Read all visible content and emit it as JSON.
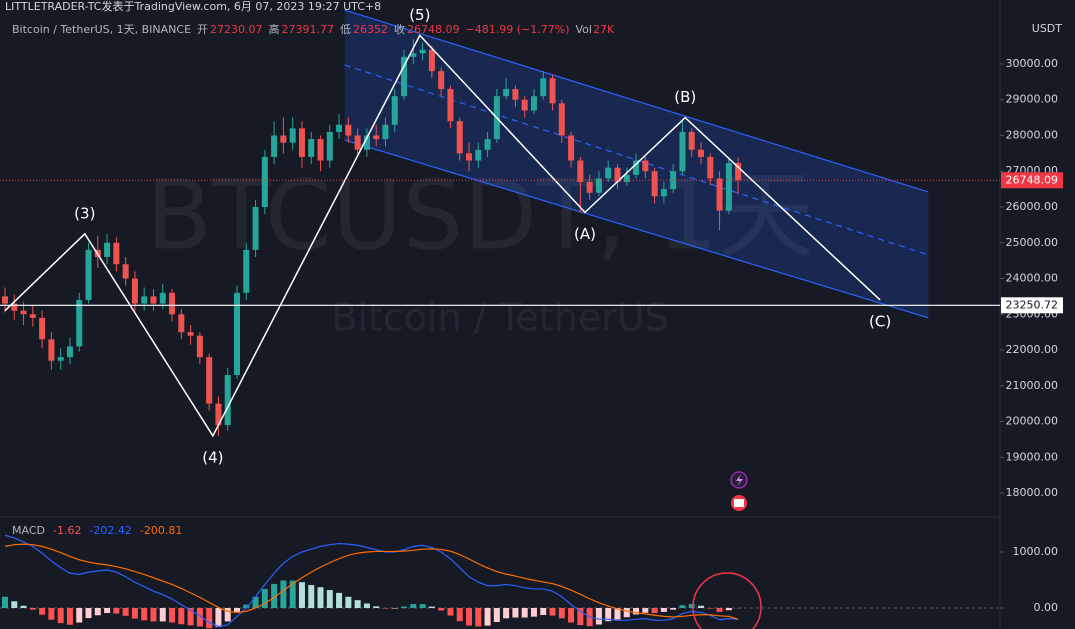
{
  "chart_data": [
    {
      "type": "candlestick",
      "credit": "LITTLETRADER-TC发表于TradingView.com,  6月 07, 2023 19:27 UTC+8",
      "title": "Bitcoin / TetherUS, 1天, BINANCE",
      "ohlc_labels": [
        "开",
        "高",
        "低",
        "收"
      ],
      "change": "−481.99 (−1.77%)",
      "volume_label": "Vol",
      "volume": "27K",
      "watermark": "BTCUSDT, 1天",
      "watermark_sub": "Bitcoin / TetherUS",
      "currency": "USDT",
      "up_color": "#26a69a",
      "down_color": "#ef5350",
      "open": [
        23500,
        23300,
        23100,
        23000,
        22900,
        22300,
        21700,
        21800,
        22100,
        23400,
        24800,
        24600,
        25000,
        24400,
        24000,
        23300,
        23500,
        23300,
        23600,
        23000,
        22500,
        22400,
        21800,
        20500,
        19900,
        21300,
        23600,
        24800,
        26000,
        27400,
        28000,
        27800,
        28200,
        27400,
        27900,
        27300,
        28100,
        28300,
        28000,
        27600,
        28000,
        27900,
        28300,
        29100,
        30200,
        30300,
        30400,
        29800,
        29300,
        28400,
        27500,
        27300,
        27600,
        27900,
        29100,
        29300,
        29000,
        28700,
        29100,
        29600,
        28900,
        28000,
        27300,
        26700,
        26400,
        26800,
        27100,
        26700,
        26900,
        27300,
        27000,
        26300,
        26500,
        27000,
        28100,
        27600,
        27400,
        26800,
        25900,
        27230.07
      ],
      "high": [
        23750,
        23550,
        23350,
        23250,
        23100,
        22500,
        22050,
        22350,
        23600,
        25000,
        25200,
        25250,
        25150,
        24600,
        24200,
        23750,
        23700,
        23850,
        23700,
        23150,
        22700,
        22500,
        21900,
        20700,
        21500,
        23800,
        25000,
        26200,
        27600,
        28400,
        28500,
        28500,
        28400,
        28100,
        28000,
        28300,
        28600,
        28500,
        28200,
        28200,
        28300,
        28500,
        29300,
        30400,
        30700,
        30600,
        30500,
        29900,
        29400,
        28500,
        27800,
        27800,
        28100,
        29300,
        29600,
        29400,
        29100,
        29300,
        29800,
        29700,
        29000,
        28100,
        27400,
        26900,
        27000,
        27300,
        27200,
        27100,
        27500,
        27400,
        27100,
        26700,
        27200,
        28450,
        28200,
        27800,
        27500,
        27000,
        27400,
        27391.77
      ],
      "low": [
        23050,
        22850,
        22700,
        22650,
        22050,
        21450,
        21450,
        21600,
        21950,
        23300,
        24300,
        24400,
        24200,
        23800,
        23050,
        23100,
        23100,
        23150,
        22800,
        22300,
        22150,
        21600,
        20300,
        19600,
        19750,
        21200,
        23400,
        24600,
        25800,
        27200,
        27500,
        27600,
        27100,
        27200,
        27000,
        27100,
        27900,
        27800,
        27400,
        27400,
        27700,
        27700,
        28100,
        29000,
        30000,
        30100,
        29600,
        29100,
        28200,
        27300,
        27000,
        27100,
        27400,
        27800,
        29000,
        28800,
        28500,
        28600,
        29000,
        28700,
        27800,
        27100,
        25850,
        26200,
        26300,
        26700,
        26500,
        26600,
        26800,
        26800,
        26100,
        26100,
        26400,
        26900,
        27400,
        27200,
        26600,
        25350,
        25800,
        26352.0
      ],
      "close": [
        23300,
        23100,
        23000,
        22900,
        22300,
        21700,
        21800,
        22100,
        23400,
        24800,
        24600,
        25000,
        24400,
        24000,
        23300,
        23500,
        23300,
        23600,
        23000,
        22500,
        22400,
        21800,
        20500,
        19900,
        21300,
        23600,
        24800,
        26000,
        27400,
        28000,
        27800,
        28200,
        27400,
        27900,
        27300,
        28100,
        28300,
        28000,
        27600,
        28000,
        27900,
        28300,
        29100,
        30200,
        30300,
        30400,
        29800,
        29300,
        28400,
        27500,
        27300,
        27600,
        27900,
        29100,
        29300,
        29000,
        28700,
        29100,
        29600,
        28900,
        28000,
        27300,
        26700,
        26400,
        26800,
        27100,
        26700,
        26900,
        27300,
        27000,
        26300,
        26500,
        27000,
        28100,
        27600,
        27400,
        26800,
        25900,
        27230.07,
        26748.09
      ],
      "wave": [
        {
          "x": 0,
          "y": 23100
        },
        {
          "x": 8.6,
          "y": 25250,
          "label": "(3)"
        },
        {
          "x": 22.4,
          "y": 19600,
          "label": "(4)"
        },
        {
          "x": 44.7,
          "y": 30800,
          "label": "(5)"
        },
        {
          "x": 62.5,
          "y": 25850,
          "label": "(A)"
        },
        {
          "x": 73.3,
          "y": 28500,
          "label": "(B)"
        },
        {
          "x": 94.3,
          "y": 23400,
          "label": "(C)"
        }
      ],
      "channel": {
        "x": [
          36.6,
          99.5
        ],
        "upper": [
          31510,
          26420
        ],
        "middle": [
          29970,
          24660
        ],
        "lower": [
          27875,
          22900
        ],
        "color": "#2962ff"
      },
      "hline": 23250.72,
      "ylim": [
        17385,
        31790
      ],
      "yticks": [
        {
          "value": 18000,
          "label": "18000.00"
        },
        {
          "value": 19000,
          "label": "19000.00"
        },
        {
          "value": 20000,
          "label": "20000.00"
        },
        {
          "value": 21000,
          "label": "21000.00"
        },
        {
          "value": 22000,
          "label": "22000.00"
        },
        {
          "value": 23000,
          "label": "23000.00"
        },
        {
          "value": 24000,
          "label": "24000.00"
        },
        {
          "value": 25000,
          "label": "25000.00"
        },
        {
          "value": 26000,
          "label": "26000.00"
        },
        {
          "value": 27000,
          "label": "27000.00"
        },
        {
          "value": 28000,
          "label": "28000.00"
        },
        {
          "value": 29000,
          "label": "29000.00"
        },
        {
          "value": 30000,
          "label": "30000.00"
        }
      ],
      "grid": false
    },
    {
      "type": "macd",
      "name": "MACD",
      "hist": [
        200,
        120,
        40,
        -30,
        -120,
        -210,
        -270,
        -300,
        -260,
        -180,
        -130,
        -90,
        -100,
        -140,
        -190,
        -220,
        -240,
        -240,
        -260,
        -290,
        -310,
        -330,
        -360,
        -340,
        -240,
        -70,
        60,
        200,
        340,
        430,
        490,
        490,
        460,
        410,
        370,
        320,
        270,
        200,
        140,
        80,
        30,
        -10,
        -10,
        25,
        70,
        70,
        25,
        -45,
        -135,
        -235,
        -315,
        -330,
        -315,
        -250,
        -185,
        -170,
        -170,
        -155,
        -125,
        -135,
        -185,
        -260,
        -305,
        -325,
        -295,
        -235,
        -205,
        -165,
        -115,
        -85,
        -90,
        -70,
        -30,
        50,
        70,
        40,
        -10,
        -70,
        -40,
        -1.62
      ],
      "macd": [
        1300,
        1250,
        1180,
        1100,
        980,
        840,
        720,
        620,
        600,
        640,
        660,
        680,
        640,
        560,
        460,
        380,
        300,
        240,
        160,
        60,
        -40,
        -140,
        -260,
        -330,
        -300,
        -150,
        0,
        200,
        420,
        620,
        800,
        920,
        1000,
        1050,
        1100,
        1130,
        1150,
        1140,
        1120,
        1080,
        1040,
        1000,
        1000,
        1040,
        1100,
        1120,
        1080,
        1000,
        880,
        720,
        560,
        460,
        400,
        400,
        420,
        400,
        360,
        340,
        340,
        300,
        200,
        60,
        -60,
        -160,
        -200,
        -200,
        -220,
        -220,
        -200,
        -190,
        -220,
        -220,
        -190,
        -100,
        -60,
        -80,
        -130,
        -210,
        -190,
        -202.42
      ],
      "signal": [
        1100,
        1130,
        1140,
        1130,
        1100,
        1050,
        990,
        920,
        860,
        820,
        790,
        770,
        740,
        700,
        650,
        600,
        540,
        480,
        420,
        350,
        270,
        190,
        100,
        10,
        -60,
        -80,
        -60,
        0,
        80,
        190,
        310,
        430,
        540,
        640,
        730,
        810,
        880,
        940,
        980,
        1000,
        1010,
        1010,
        1010,
        1015,
        1030,
        1050,
        1055,
        1045,
        1015,
        955,
        875,
        790,
        715,
        650,
        605,
        570,
        530,
        495,
        465,
        435,
        385,
        320,
        245,
        165,
        95,
        35,
        -15,
        -55,
        -85,
        -105,
        -130,
        -150,
        -160,
        -150,
        -130,
        -120,
        -120,
        -140,
        -150,
        -200.81
      ],
      "colors": {
        "macd": "#2962ff",
        "signal": "#ff6d00",
        "up_strong": "#26a69a",
        "up_weak": "#b2dfdb",
        "down_strong": "#ff5252",
        "down_weak": "#ffcdd2"
      },
      "ylim": [
        -375,
        1571
      ],
      "yticks": [
        {
          "value": 0,
          "label": "0.00"
        },
        {
          "value": 1000,
          "label": "1000.00"
        }
      ]
    }
  ]
}
